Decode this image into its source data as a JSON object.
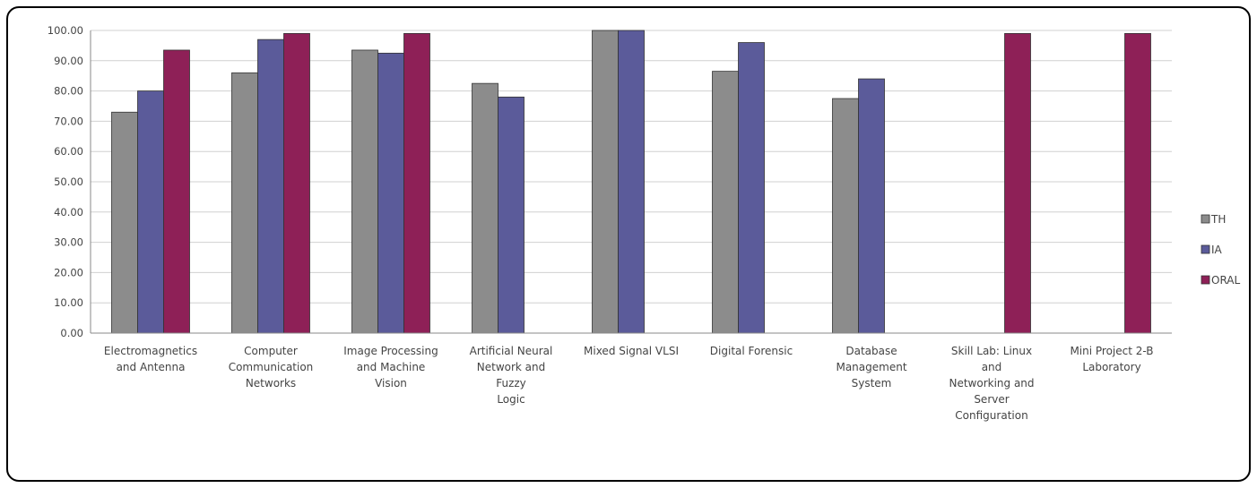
{
  "chart_data": {
    "type": "bar",
    "categories": [
      [
        "Electromagnetics",
        "and Antenna"
      ],
      [
        "Computer",
        "Communication",
        "Networks"
      ],
      [
        "Image Processing",
        "and Machine",
        "Vision"
      ],
      [
        "Artificial Neural",
        "Network and",
        "Fuzzy",
        "Logic"
      ],
      [
        "Mixed Signal VLSI"
      ],
      [
        "Digital Forensic"
      ],
      [
        "Database",
        "Management",
        "System"
      ],
      [
        "Skill Lab: Linux",
        "and",
        "Networking and",
        "Server",
        "Configuration"
      ],
      [
        "Mini Project 2-B",
        "Laboratory"
      ]
    ],
    "series": [
      {
        "name": "TH",
        "color": "#8c8c8c",
        "values": [
          73,
          86,
          93.5,
          82.5,
          100,
          86.5,
          77.5,
          null,
          null
        ]
      },
      {
        "name": "IA",
        "color": "#5b5b9a",
        "values": [
          80,
          97,
          92.5,
          78,
          100,
          96,
          84,
          null,
          null
        ]
      },
      {
        "name": "ORAL",
        "color": "#8e2057",
        "values": [
          93.5,
          99,
          99,
          null,
          null,
          null,
          null,
          99,
          99
        ]
      }
    ],
    "yticks": [
      "0.00",
      "10.00",
      "20.00",
      "30.00",
      "40.00",
      "50.00",
      "60.00",
      "70.00",
      "80.00",
      "90.00",
      "100.00"
    ],
    "ylim": [
      0,
      100
    ],
    "grid": true,
    "legend": "right"
  }
}
